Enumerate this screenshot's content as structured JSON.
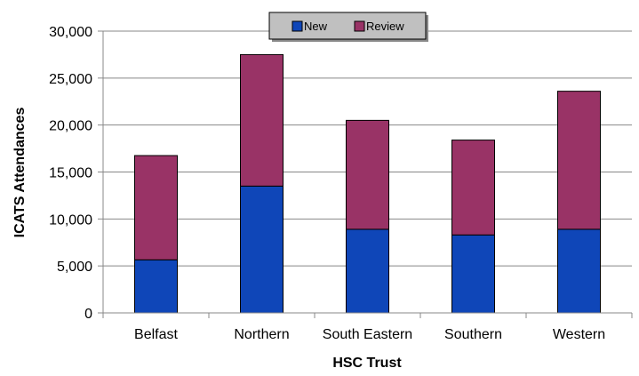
{
  "chart_data": {
    "type": "bar",
    "stacked": true,
    "title": "",
    "xlabel": "HSC Trust",
    "ylabel": "ICATS Attendances",
    "categories": [
      "Belfast",
      "Northern",
      "South Eastern",
      "Southern",
      "Western"
    ],
    "series": [
      {
        "name": "New",
        "values": [
          5650,
          13500,
          8900,
          8300,
          8900
        ],
        "color": "#0f46b8"
      },
      {
        "name": "Review",
        "values": [
          11100,
          14000,
          11600,
          10100,
          14700
        ],
        "color": "#993366"
      }
    ],
    "ylim": [
      0,
      30000
    ],
    "yticks": [
      0,
      5000,
      10000,
      15000,
      20000,
      25000,
      30000
    ],
    "ytick_labels": [
      "0",
      "5,000",
      "10,000",
      "15,000",
      "20,000",
      "25,000",
      "30,000"
    ],
    "grid": true,
    "legend": "top-center"
  }
}
